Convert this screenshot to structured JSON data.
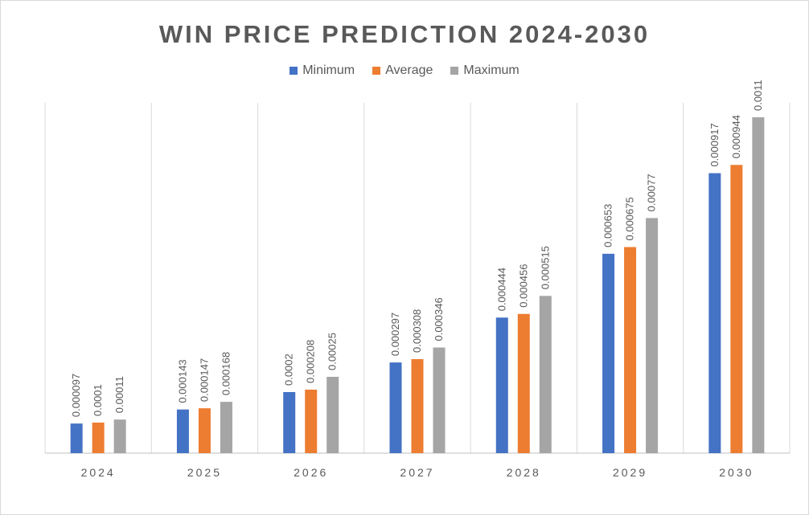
{
  "chart_data": {
    "type": "bar",
    "title": "WIN PRICE PREDICTION 2024-2030",
    "categories": [
      "2024",
      "2025",
      "2026",
      "2027",
      "2028",
      "2029",
      "2030"
    ],
    "series": [
      {
        "name": "Minimum",
        "color": "#4472c4",
        "values": [
          9.7e-05,
          0.000143,
          0.0002,
          0.000297,
          0.000444,
          0.000653,
          0.000917
        ],
        "labels": [
          "0.000097",
          "0.000143",
          "0.0002",
          "0.000297",
          "0.000444",
          "0.000653",
          "0.000917"
        ]
      },
      {
        "name": "Average",
        "color": "#ed7d31",
        "values": [
          0.0001,
          0.000147,
          0.000208,
          0.000308,
          0.000456,
          0.000675,
          0.000944
        ],
        "labels": [
          "0.0001",
          "0.000147",
          "0.000208",
          "0.000308",
          "0.000456",
          "0.000675",
          "0.000944"
        ]
      },
      {
        "name": "Maximum",
        "color": "#a5a5a5",
        "values": [
          0.00011,
          0.000168,
          0.00025,
          0.000346,
          0.000515,
          0.00077,
          0.0011
        ],
        "labels": [
          "0.00011",
          "0.000168",
          "0.00025",
          "0.000346",
          "0.000515",
          "0.00077",
          "0.0011"
        ]
      }
    ],
    "ylim": [
      0,
      0.0012
    ],
    "legend_position": "top",
    "grid": "vertical category separators"
  }
}
